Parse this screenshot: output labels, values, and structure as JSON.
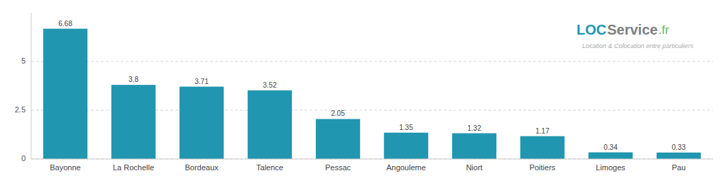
{
  "chart_data": {
    "type": "bar",
    "categories": [
      "Bayonne",
      "La Rochelle",
      "Bordeaux",
      "Talence",
      "Pessac",
      "Angouleme",
      "Niort",
      "Poitiers",
      "Limoges",
      "Pau"
    ],
    "values": [
      6.68,
      3.8,
      3.71,
      3.52,
      2.05,
      1.35,
      1.32,
      1.17,
      0.34,
      0.33
    ],
    "color": "#2196b0",
    "ylim": [
      0,
      7.5
    ],
    "yticks": [
      0,
      2.5,
      5
    ],
    "grid": true,
    "data_labels": true,
    "annotations": [
      {
        "text": "LOC",
        "color": "#2196b0"
      },
      {
        "text": "Service",
        "color": "#808080"
      },
      {
        "text": ".fr",
        "color": "#5cb85c"
      },
      {
        "text": "Location & Colocation entre particuliers",
        "color": "#aaaaaa"
      }
    ]
  }
}
